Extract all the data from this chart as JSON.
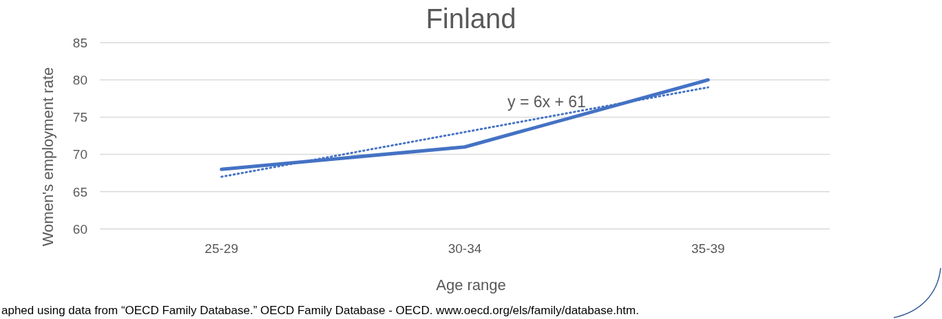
{
  "chart_data": {
    "type": "line",
    "title": "Finland",
    "xlabel": "Age range",
    "ylabel": "Women's employment rate",
    "categories": [
      "25-29",
      "30-34",
      "35-39"
    ],
    "series": [
      {
        "color": "#4472c4",
        "values": [
          68,
          71,
          80
        ],
        "line_style": "solid"
      },
      {
        "type": "line",
        "color": "#4472c4",
        "values": [
          67,
          73,
          79
        ],
        "line_style": "dotted"
      }
    ],
    "ylim": [
      60,
      85
    ],
    "yticks": [
      60,
      65,
      70,
      75,
      80,
      85
    ],
    "grid": "y",
    "legend": false,
    "marker": "none",
    "annotations": [
      "y = 6x + 61",
      "aphed using data from “OECD Family Database.” OECD Family Database - OECD. www.oecd.org/els/family/database.htm."
    ]
  }
}
